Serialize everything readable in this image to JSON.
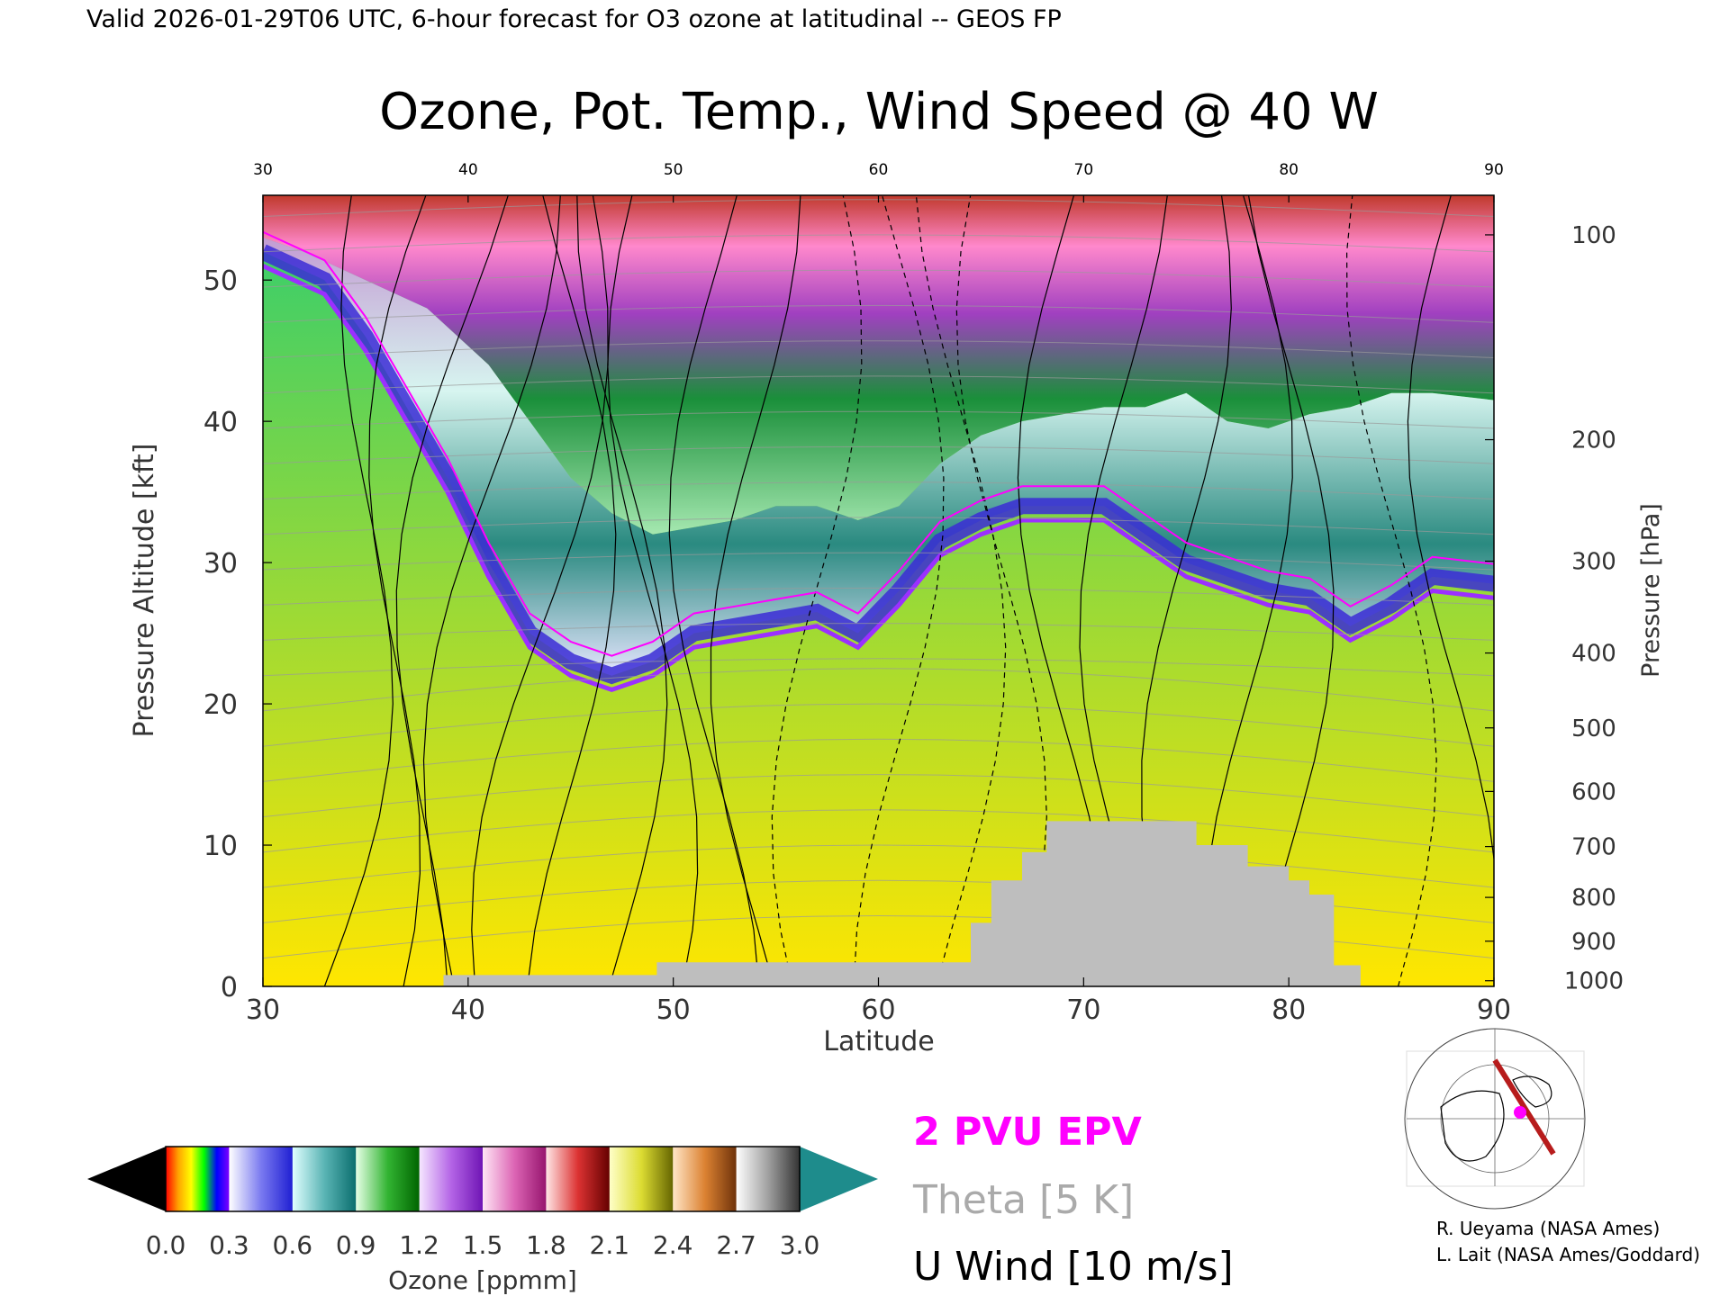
{
  "header": {
    "valid_line": "Valid 2026-01-29T06 UTC, 6-hour forecast for O3 ozone at latitudinal -- GEOS FP"
  },
  "chart_data": {
    "type": "heatmap",
    "title": "Ozone, Pot. Temp., Wind Speed @ 40 W",
    "xlabel": "Latitude",
    "ylabel_left": "Pressure Altitude [kft]",
    "ylabel_right": "Pressure [hPa]",
    "xlim": [
      30,
      90
    ],
    "ylim": [
      0,
      56
    ],
    "x_ticks": [
      30,
      40,
      50,
      60,
      70,
      80,
      90
    ],
    "top_ticks": [
      "30",
      "40",
      "50",
      "60",
      "70",
      "80",
      "90"
    ],
    "y_ticks": [
      0,
      10,
      20,
      30,
      40,
      50
    ],
    "right_ticks": [
      {
        "label": "100",
        "kft": 53.2
      },
      {
        "label": "200",
        "kft": 38.7
      },
      {
        "label": "300",
        "kft": 30.1
      },
      {
        "label": "400",
        "kft": 23.6
      },
      {
        "label": "500",
        "kft": 18.3
      },
      {
        "label": "600",
        "kft": 13.8
      },
      {
        "label": "700",
        "kft": 9.9
      },
      {
        "label": "800",
        "kft": 6.3
      },
      {
        "label": "900",
        "kft": 3.2
      },
      {
        "label": "1000",
        "kft": 0.4
      }
    ],
    "tropopause_kft": [
      [
        30,
        52
      ],
      [
        33,
        50
      ],
      [
        35,
        46
      ],
      [
        37,
        41
      ],
      [
        39,
        36
      ],
      [
        41,
        30
      ],
      [
        43,
        25
      ],
      [
        45,
        23
      ],
      [
        47,
        22
      ],
      [
        49,
        23
      ],
      [
        51,
        25
      ],
      [
        53,
        25.5
      ],
      [
        55,
        26
      ],
      [
        57,
        26.5
      ],
      [
        59,
        25
      ],
      [
        61,
        28
      ],
      [
        63,
        31.5
      ],
      [
        65,
        33
      ],
      [
        67,
        34
      ],
      [
        69,
        34
      ],
      [
        71,
        34
      ],
      [
        73,
        32
      ],
      [
        75,
        30
      ],
      [
        77,
        29
      ],
      [
        79,
        28
      ],
      [
        81,
        27.5
      ],
      [
        83,
        25.5
      ],
      [
        85,
        27
      ],
      [
        87,
        29
      ],
      [
        90,
        28.5
      ]
    ],
    "stratosphere_top_kft": [
      [
        30,
        53
      ],
      [
        32,
        52
      ],
      [
        35,
        50
      ],
      [
        38,
        48
      ],
      [
        41,
        44
      ],
      [
        43,
        40
      ],
      [
        45,
        36
      ],
      [
        47,
        33.5
      ],
      [
        49,
        32
      ],
      [
        51,
        32.5
      ],
      [
        53,
        33
      ],
      [
        55,
        34
      ],
      [
        57,
        34
      ],
      [
        59,
        33
      ],
      [
        61,
        34
      ],
      [
        63,
        37
      ],
      [
        65,
        39
      ],
      [
        67,
        40
      ],
      [
        69,
        40.5
      ],
      [
        71,
        41
      ],
      [
        73,
        41
      ],
      [
        75,
        42
      ],
      [
        77,
        40
      ],
      [
        79,
        39.5
      ],
      [
        81,
        40.5
      ],
      [
        83,
        41
      ],
      [
        85,
        42
      ],
      [
        87,
        42
      ],
      [
        90,
        41.5
      ]
    ],
    "terrain_kft": [
      [
        30,
        0
      ],
      [
        38.8,
        0
      ],
      [
        38.8,
        0.8
      ],
      [
        49.2,
        0.8
      ],
      [
        49.2,
        1.7
      ],
      [
        64.5,
        1.7
      ],
      [
        64.5,
        4.5
      ],
      [
        65.5,
        4.5
      ],
      [
        65.5,
        7.5
      ],
      [
        67,
        7.5
      ],
      [
        67,
        9.5
      ],
      [
        68.2,
        9.5
      ],
      [
        68.2,
        11.7
      ],
      [
        75.5,
        11.7
      ],
      [
        75.5,
        10
      ],
      [
        78,
        10
      ],
      [
        78,
        8.5
      ],
      [
        80,
        8.5
      ],
      [
        80,
        7.5
      ],
      [
        81,
        7.5
      ],
      [
        81,
        6.5
      ],
      [
        82.2,
        6.5
      ],
      [
        82.2,
        1.5
      ],
      [
        83.5,
        1.5
      ],
      [
        83.5,
        0
      ],
      [
        90,
        0
      ]
    ],
    "legend": {
      "epv": "2 PVU EPV",
      "theta": "Theta [5 K]",
      "uwind": "U Wind [10 m/s]",
      "epv_color": "#ff00ff",
      "theta_color": "#aaaaaa",
      "uwind_color": "#000000"
    },
    "colorbar": {
      "label": "Ozone [ppmm]",
      "tick_labels": [
        "0.0",
        "0.3",
        "0.6",
        "0.9",
        "1.2",
        "1.5",
        "1.8",
        "2.1",
        "2.4",
        "2.7",
        "3.0"
      ],
      "range": [
        0,
        3.0
      ],
      "under_color": "#000000",
      "over_color": "#1e8c8c",
      "gradients": [
        [
          "#ff0000",
          "#ffa500",
          "#ffff00",
          "#00ff00",
          "#0000ff",
          "#8000ff"
        ],
        [
          "#ffffff",
          "#7a7af0",
          "#1e1ed2"
        ],
        [
          "#e0ffff",
          "#5ab4b4",
          "#0a6e6e"
        ],
        [
          "#e6ffe6",
          "#32b432",
          "#006400"
        ],
        [
          "#f5e6ff",
          "#b464e6",
          "#6e14b4"
        ],
        [
          "#ffe6f5",
          "#dc64b4",
          "#96146e"
        ],
        [
          "#ffe6e6",
          "#dc3232",
          "#640000"
        ],
        [
          "#ffffc8",
          "#dcdc32",
          "#646400"
        ],
        [
          "#ffe6c8",
          "#dc8232",
          "#6e320a"
        ],
        [
          "#ffffff",
          "#a0a0a0",
          "#323232"
        ]
      ]
    }
  },
  "credits": {
    "line1": "R. Ueyama (NASA Ames)",
    "line2": "L. Lait (NASA Ames/Goddard)"
  }
}
